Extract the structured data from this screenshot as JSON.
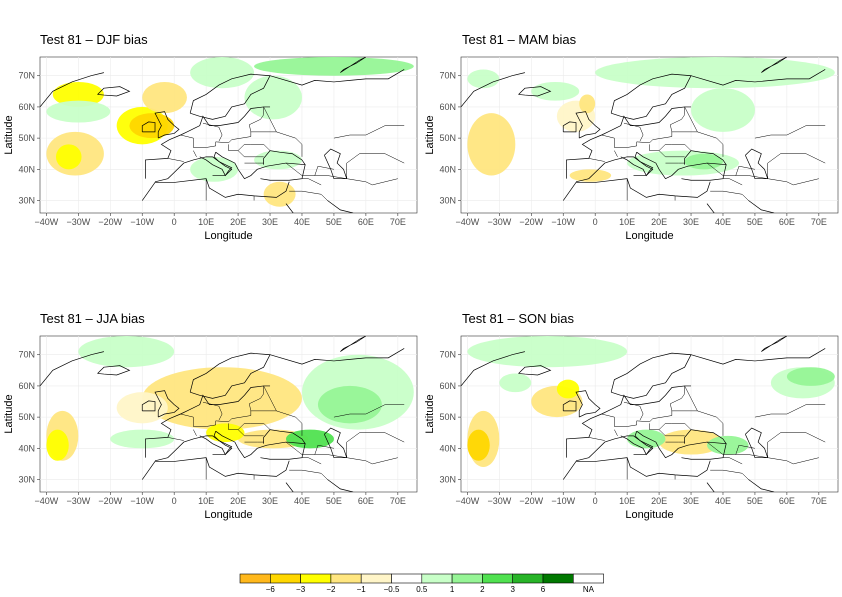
{
  "chart_data": [
    {
      "type": "heatmap",
      "title": "Test 81 – DJF bias",
      "xlabel": "Longitude",
      "ylabel": "Latitude",
      "xlim": [
        -42,
        76
      ],
      "ylim": [
        26,
        76
      ],
      "x_ticks": [
        "−40W",
        "−30W",
        "−20W",
        "−10W",
        "0",
        "10E",
        "20E",
        "30E",
        "40E",
        "50E",
        "60E",
        "70E"
      ],
      "y_ticks": [
        "30N",
        "40N",
        "50N",
        "60N",
        "70N"
      ],
      "grid": true,
      "regions": [
        {
          "lon": [
            -40,
            -22
          ],
          "lat": [
            38,
            52
          ],
          "class": "-1"
        },
        {
          "lon": [
            -37,
            -29
          ],
          "lat": [
            40,
            48
          ],
          "class": "-2"
        },
        {
          "lon": [
            -18,
            -2
          ],
          "lat": [
            48,
            60
          ],
          "class": "-2"
        },
        {
          "lon": [
            -14,
            0
          ],
          "lat": [
            50,
            58
          ],
          "class": "-3"
        },
        {
          "lon": [
            -10,
            4
          ],
          "lat": [
            58,
            68
          ],
          "class": "-1"
        },
        {
          "lon": [
            -38,
            -22
          ],
          "lat": [
            60,
            68
          ],
          "class": "-2"
        },
        {
          "lon": [
            5,
            25
          ],
          "lat": [
            66,
            76
          ],
          "class": "1"
        },
        {
          "lon": [
            25,
            75
          ],
          "lat": [
            70,
            76
          ],
          "class": "2"
        },
        {
          "lon": [
            -40,
            -20
          ],
          "lat": [
            55,
            62
          ],
          "class": "1"
        },
        {
          "lon": [
            22,
            40
          ],
          "lat": [
            56,
            70
          ],
          "class": "1"
        },
        {
          "lon": [
            25,
            40
          ],
          "lat": [
            40,
            46
          ],
          "class": "1"
        },
        {
          "lon": [
            28,
            38
          ],
          "lat": [
            28,
            36
          ],
          "class": "-1"
        },
        {
          "lon": [
            5,
            20
          ],
          "lat": [
            36,
            44
          ],
          "class": "1"
        }
      ]
    },
    {
      "type": "heatmap",
      "title": "Test 81 – MAM bias",
      "xlabel": "Longitude",
      "ylabel": "Latitude",
      "xlim": [
        -42,
        76
      ],
      "ylim": [
        26,
        76
      ],
      "x_ticks": [
        "−40W",
        "−30W",
        "−20W",
        "−10W",
        "0",
        "10E",
        "20E",
        "30E",
        "40E",
        "50E",
        "60E",
        "70E"
      ],
      "y_ticks": [
        "30N",
        "40N",
        "50N",
        "60N",
        "70N"
      ],
      "grid": true,
      "regions": [
        {
          "lon": [
            -40,
            -25
          ],
          "lat": [
            38,
            58
          ],
          "class": "-1"
        },
        {
          "lon": [
            -12,
            0
          ],
          "lat": [
            52,
            62
          ],
          "class": "-0.5"
        },
        {
          "lon": [
            -5,
            0
          ],
          "lat": [
            58,
            64
          ],
          "class": "-1"
        },
        {
          "lon": [
            0,
            75
          ],
          "lat": [
            66,
            76
          ],
          "class": "1"
        },
        {
          "lon": [
            10,
            45
          ],
          "lat": [
            38,
            46
          ],
          "class": "1"
        },
        {
          "lon": [
            28,
            40
          ],
          "lat": [
            40,
            45
          ],
          "class": "2"
        },
        {
          "lon": [
            30,
            50
          ],
          "lat": [
            52,
            66
          ],
          "class": "1"
        },
        {
          "lon": [
            -20,
            -5
          ],
          "lat": [
            62,
            68
          ],
          "class": "1"
        },
        {
          "lon": [
            -40,
            -30
          ],
          "lat": [
            66,
            72
          ],
          "class": "1"
        },
        {
          "lon": [
            -8,
            5
          ],
          "lat": [
            36,
            40
          ],
          "class": "-1"
        }
      ]
    },
    {
      "type": "heatmap",
      "title": "Test 81 – JJA bias",
      "xlabel": "Longitude",
      "ylabel": "Latitude",
      "xlim": [
        -42,
        76
      ],
      "ylim": [
        26,
        76
      ],
      "x_ticks": [
        "−40W",
        "−30W",
        "−20W",
        "−10W",
        "0",
        "10E",
        "20E",
        "30E",
        "40E",
        "50E",
        "60E",
        "70E"
      ],
      "y_ticks": [
        "30N",
        "40N",
        "50N",
        "60N",
        "70N"
      ],
      "grid": true,
      "regions": [
        {
          "lon": [
            -40,
            -30
          ],
          "lat": [
            36,
            52
          ],
          "class": "-1"
        },
        {
          "lon": [
            -40,
            -33
          ],
          "lat": [
            36,
            46
          ],
          "class": "-2"
        },
        {
          "lon": [
            -10,
            40
          ],
          "lat": [
            46,
            66
          ],
          "class": "-1"
        },
        {
          "lon": [
            -18,
            -2
          ],
          "lat": [
            48,
            58
          ],
          "class": "-0.5"
        },
        {
          "lon": [
            20,
            42
          ],
          "lat": [
            40,
            46
          ],
          "class": "-1"
        },
        {
          "lon": [
            40,
            75
          ],
          "lat": [
            46,
            70
          ],
          "class": "1"
        },
        {
          "lon": [
            45,
            65
          ],
          "lat": [
            48,
            60
          ],
          "class": "2"
        },
        {
          "lon": [
            35,
            50
          ],
          "lat": [
            40,
            46
          ],
          "class": "3"
        },
        {
          "lon": [
            -30,
            0
          ],
          "lat": [
            66,
            76
          ],
          "class": "1"
        },
        {
          "lon": [
            -20,
            0
          ],
          "lat": [
            40,
            46
          ],
          "class": "1"
        },
        {
          "lon": [
            10,
            22
          ],
          "lat": [
            42,
            48
          ],
          "class": "-2"
        }
      ]
    },
    {
      "type": "heatmap",
      "title": "Test 81 – SON bias",
      "xlabel": "Longitude",
      "ylabel": "Latitude",
      "xlim": [
        -42,
        76
      ],
      "ylim": [
        26,
        76
      ],
      "x_ticks": [
        "−40W",
        "−30W",
        "−20W",
        "−10W",
        "0",
        "10E",
        "20E",
        "30E",
        "40E",
        "50E",
        "60E",
        "70E"
      ],
      "y_ticks": [
        "30N",
        "40N",
        "50N",
        "60N",
        "70N"
      ],
      "grid": true,
      "regions": [
        {
          "lon": [
            -40,
            -30
          ],
          "lat": [
            34,
            52
          ],
          "class": "-1"
        },
        {
          "lon": [
            -40,
            -33
          ],
          "lat": [
            36,
            46
          ],
          "class": "-3"
        },
        {
          "lon": [
            -20,
            -4
          ],
          "lat": [
            50,
            60
          ],
          "class": "-1"
        },
        {
          "lon": [
            -12,
            -5
          ],
          "lat": [
            56,
            62
          ],
          "class": "-2"
        },
        {
          "lon": [
            -40,
            10
          ],
          "lat": [
            66,
            76
          ],
          "class": "1"
        },
        {
          "lon": [
            -30,
            -20
          ],
          "lat": [
            58,
            64
          ],
          "class": "1"
        },
        {
          "lon": [
            20,
            40
          ],
          "lat": [
            38,
            46
          ],
          "class": "-1"
        },
        {
          "lon": [
            10,
            22
          ],
          "lat": [
            40,
            46
          ],
          "class": "2"
        },
        {
          "lon": [
            35,
            48
          ],
          "lat": [
            38,
            44
          ],
          "class": "2"
        },
        {
          "lon": [
            55,
            75
          ],
          "lat": [
            56,
            66
          ],
          "class": "1"
        },
        {
          "lon": [
            60,
            75
          ],
          "lat": [
            60,
            66
          ],
          "class": "2"
        }
      ]
    }
  ],
  "legend": {
    "colors": [
      "#FFB81C",
      "#FFD700",
      "#FFFF00",
      "#FFE680",
      "#FFF5C8",
      "#FFFFFF",
      "#C8FFC8",
      "#96F596",
      "#50E150",
      "#28B428",
      "#007800",
      "#FFFFFF"
    ],
    "classes": [
      "-6",
      "-3",
      "-2",
      "-1",
      "-0.5",
      "0.5",
      "1",
      "2",
      "3",
      "6",
      "max",
      "NA"
    ],
    "labels": [
      "−6",
      "−3",
      "−2",
      "−1",
      "−0.5",
      "0.5",
      "1",
      "2",
      "3",
      "6",
      "NA"
    ]
  }
}
